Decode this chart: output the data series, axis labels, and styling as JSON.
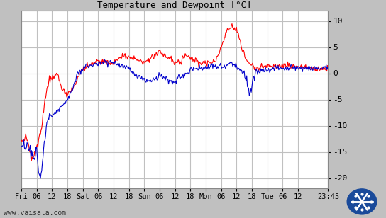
{
  "title": "Temperature and Dewpoint [°C]",
  "bg_color": "#c0c0c0",
  "plot_bg_color": "#ffffff",
  "grid_color": "#c0c0c0",
  "temp_color": "#ff0000",
  "dewp_color": "#0000cc",
  "ylim": [
    -22,
    12
  ],
  "yticks": [
    -20,
    -15,
    -10,
    -5,
    0,
    5,
    10
  ],
  "xtick_positions": [
    0,
    6,
    12,
    18,
    24,
    30,
    36,
    42,
    48,
    54,
    60,
    66,
    72,
    78,
    84,
    90,
    96,
    102,
    108,
    119.75
  ],
  "xtick_labels": [
    "Fri",
    "06",
    "12",
    "18",
    "Sat",
    "06",
    "12",
    "18",
    "Sun",
    "06",
    "12",
    "18",
    "Mon",
    "06",
    "12",
    "18",
    "Tue",
    "06",
    "12",
    "23:45"
  ],
  "watermark": "www.vaisala.com",
  "line_width": 0.8,
  "temp_keypoints": [
    [
      0,
      -13
    ],
    [
      2,
      -12
    ],
    [
      4,
      -16
    ],
    [
      6,
      -14
    ],
    [
      8,
      -10
    ],
    [
      9,
      -6
    ],
    [
      10,
      -3
    ],
    [
      11,
      -1
    ],
    [
      12,
      -1
    ],
    [
      14,
      0
    ],
    [
      16,
      -3
    ],
    [
      18,
      -4
    ],
    [
      20,
      -3
    ],
    [
      22,
      -1
    ],
    [
      24,
      1
    ],
    [
      26,
      1.5
    ],
    [
      28,
      2
    ],
    [
      30,
      2.5
    ],
    [
      32,
      2.5
    ],
    [
      34,
      2
    ],
    [
      36,
      2
    ],
    [
      38,
      3
    ],
    [
      40,
      3.5
    ],
    [
      42,
      3.2
    ],
    [
      44,
      3
    ],
    [
      46,
      2.5
    ],
    [
      48,
      2
    ],
    [
      50,
      2.5
    ],
    [
      52,
      3.5
    ],
    [
      54,
      4.5
    ],
    [
      56,
      3.5
    ],
    [
      58,
      3
    ],
    [
      60,
      2
    ],
    [
      62,
      2.5
    ],
    [
      64,
      3.5
    ],
    [
      66,
      3
    ],
    [
      68,
      2.5
    ],
    [
      70,
      2
    ],
    [
      72,
      2
    ],
    [
      74,
      2
    ],
    [
      76,
      2.5
    ],
    [
      78,
      5
    ],
    [
      80,
      8
    ],
    [
      82,
      9
    ],
    [
      84,
      8.5
    ],
    [
      86,
      5
    ],
    [
      88,
      2.5
    ],
    [
      90,
      1.5
    ],
    [
      92,
      1
    ],
    [
      95,
      1.5
    ],
    [
      100,
      1.5
    ],
    [
      108,
      1.5
    ],
    [
      114,
      1
    ],
    [
      119.75,
      1
    ]
  ],
  "dewp_keypoints": [
    [
      0,
      -14
    ],
    [
      2,
      -13.5
    ],
    [
      3,
      -14
    ],
    [
      4,
      -15
    ],
    [
      5,
      -16
    ],
    [
      6,
      -14.5
    ],
    [
      7,
      -19
    ],
    [
      7.5,
      -20
    ],
    [
      8,
      -18
    ],
    [
      9,
      -14
    ],
    [
      10,
      -9
    ],
    [
      11,
      -8
    ],
    [
      12,
      -8
    ],
    [
      14,
      -7
    ],
    [
      16,
      -6
    ],
    [
      18,
      -5
    ],
    [
      20,
      -3
    ],
    [
      22,
      0
    ],
    [
      24,
      1
    ],
    [
      26,
      1.5
    ],
    [
      28,
      1.5
    ],
    [
      30,
      2
    ],
    [
      32,
      2.5
    ],
    [
      34,
      2
    ],
    [
      36,
      2
    ],
    [
      38,
      1.5
    ],
    [
      40,
      1.5
    ],
    [
      42,
      1
    ],
    [
      44,
      0
    ],
    [
      46,
      -1
    ],
    [
      48,
      -1
    ],
    [
      50,
      -1.5
    ],
    [
      52,
      -1
    ],
    [
      54,
      -0.5
    ],
    [
      56,
      -1
    ],
    [
      58,
      -1.5
    ],
    [
      60,
      -1.5
    ],
    [
      62,
      -0.5
    ],
    [
      64,
      0
    ],
    [
      66,
      0.5
    ],
    [
      68,
      1
    ],
    [
      70,
      1
    ],
    [
      72,
      1
    ],
    [
      74,
      1.5
    ],
    [
      76,
      1.5
    ],
    [
      78,
      1.5
    ],
    [
      80,
      1.5
    ],
    [
      82,
      2
    ],
    [
      84,
      1.5
    ],
    [
      86,
      0.5
    ],
    [
      88,
      -1
    ],
    [
      89,
      -3.5
    ],
    [
      90,
      -1.5
    ],
    [
      91,
      0
    ],
    [
      92,
      0.5
    ],
    [
      95,
      0.5
    ],
    [
      100,
      1
    ],
    [
      108,
      1
    ],
    [
      114,
      1
    ],
    [
      119.75,
      1
    ]
  ]
}
